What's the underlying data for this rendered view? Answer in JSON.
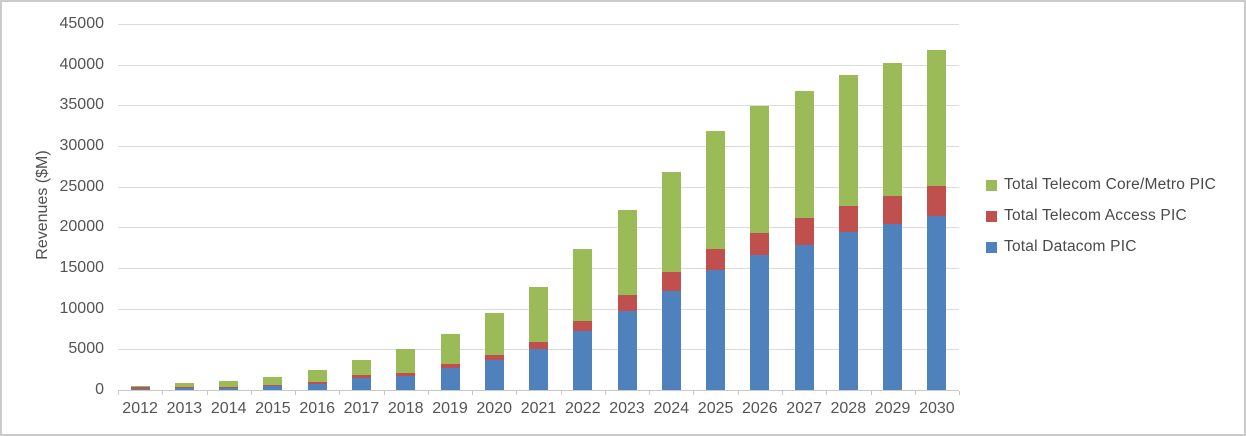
{
  "chart_data": {
    "type": "bar",
    "stacked": true,
    "title": "",
    "xlabel": "",
    "ylabel": "Revenues ($M)",
    "ylim": [
      0,
      45000
    ],
    "yticks": [
      0,
      5000,
      10000,
      15000,
      20000,
      25000,
      30000,
      35000,
      40000,
      45000
    ],
    "grid": true,
    "categories": [
      "2012",
      "2013",
      "2014",
      "2015",
      "2016",
      "2017",
      "2018",
      "2019",
      "2020",
      "2021",
      "2022",
      "2023",
      "2024",
      "2025",
      "2026",
      "2027",
      "2028",
      "2029",
      "2030"
    ],
    "series": [
      {
        "name": "Total Datacom PIC",
        "color": "#4f81bd",
        "values": [
          100,
          250,
          300,
          500,
          800,
          1450,
          1700,
          2650,
          3700,
          5100,
          7200,
          9700,
          12200,
          14700,
          16600,
          17800,
          19400,
          20400,
          21400
        ]
      },
      {
        "name": "Total Telecom Access PIC",
        "color": "#c0504d",
        "values": [
          250,
          100,
          100,
          150,
          200,
          350,
          450,
          550,
          600,
          850,
          1300,
          2000,
          2300,
          2600,
          2700,
          3300,
          3200,
          3400,
          3700
        ]
      },
      {
        "name": "Total Telecom Core/Metro PIC",
        "color": "#9bbb59",
        "values": [
          150,
          550,
          700,
          900,
          1500,
          1850,
          2850,
          3700,
          5200,
          6750,
          8900,
          10400,
          12300,
          14600,
          15600,
          15700,
          16100,
          16400,
          16700
        ]
      }
    ],
    "legend": {
      "position": "right",
      "entries": [
        {
          "label": "Total Telecom Core/Metro PIC",
          "color": "#9bbb59"
        },
        {
          "label": "Total Telecom Access PIC",
          "color": "#c0504d"
        },
        {
          "label": "Total Datacom PIC",
          "color": "#4f81bd"
        }
      ]
    }
  },
  "colors": {
    "datacom_blue": "#4f81bd",
    "access_red": "#c0504d",
    "core_metro_green": "#9bbb59",
    "gridline": "#dcdcdc",
    "axis": "#c9c9c9",
    "text": "#545454"
  }
}
